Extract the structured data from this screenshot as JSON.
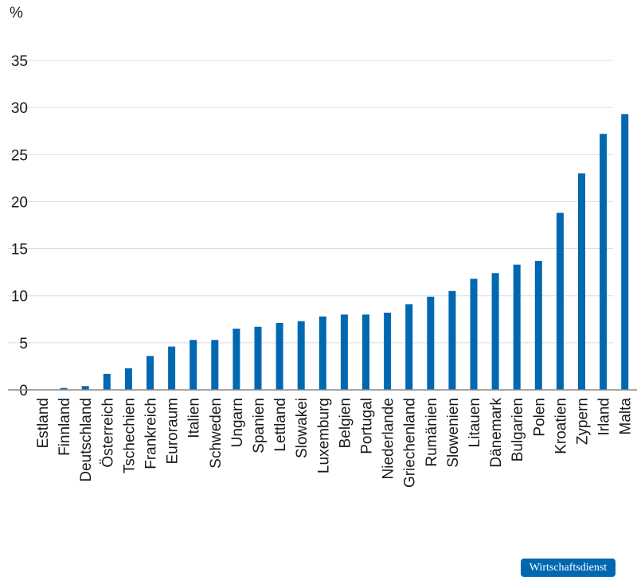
{
  "chart_data": {
    "type": "bar",
    "title": "",
    "xlabel": "",
    "ylabel": "%",
    "ylim": [
      0,
      35
    ],
    "yticks": [
      0,
      5,
      10,
      15,
      20,
      25,
      30,
      35
    ],
    "grid": true,
    "categories": [
      "Estland",
      "Finnland",
      "Deutschland",
      "Österreich",
      "Tschechien",
      "Frankreich",
      "Euroraum",
      "Italien",
      "Schweden",
      "Ungarn",
      "Spanien",
      "Lettland",
      "Slowakei",
      "Luxemburg",
      "Belgien",
      "Portugal",
      "Niederlande",
      "Griechenland",
      "Rumänien",
      "Slowenien",
      "Litauen",
      "Dänemark",
      "Bulgarien",
      "Polen",
      "Kroatien",
      "Zypern",
      "Irland",
      "Malta"
    ],
    "values": [
      0.0,
      0.2,
      0.4,
      1.7,
      2.3,
      3.6,
      4.6,
      5.3,
      5.3,
      6.5,
      6.7,
      7.1,
      7.3,
      7.8,
      8.0,
      8.0,
      8.2,
      9.1,
      9.9,
      10.5,
      11.8,
      12.4,
      13.3,
      13.7,
      18.8,
      23.0,
      27.2,
      29.3
    ],
    "highlight_category": "Euroraum",
    "colors": {
      "bar": "#0067b1",
      "highlight_label": "#0067b1",
      "grid": "#dcdcdc",
      "axis": "#888888"
    }
  },
  "logo_text": "Wirtschaftsdienst"
}
